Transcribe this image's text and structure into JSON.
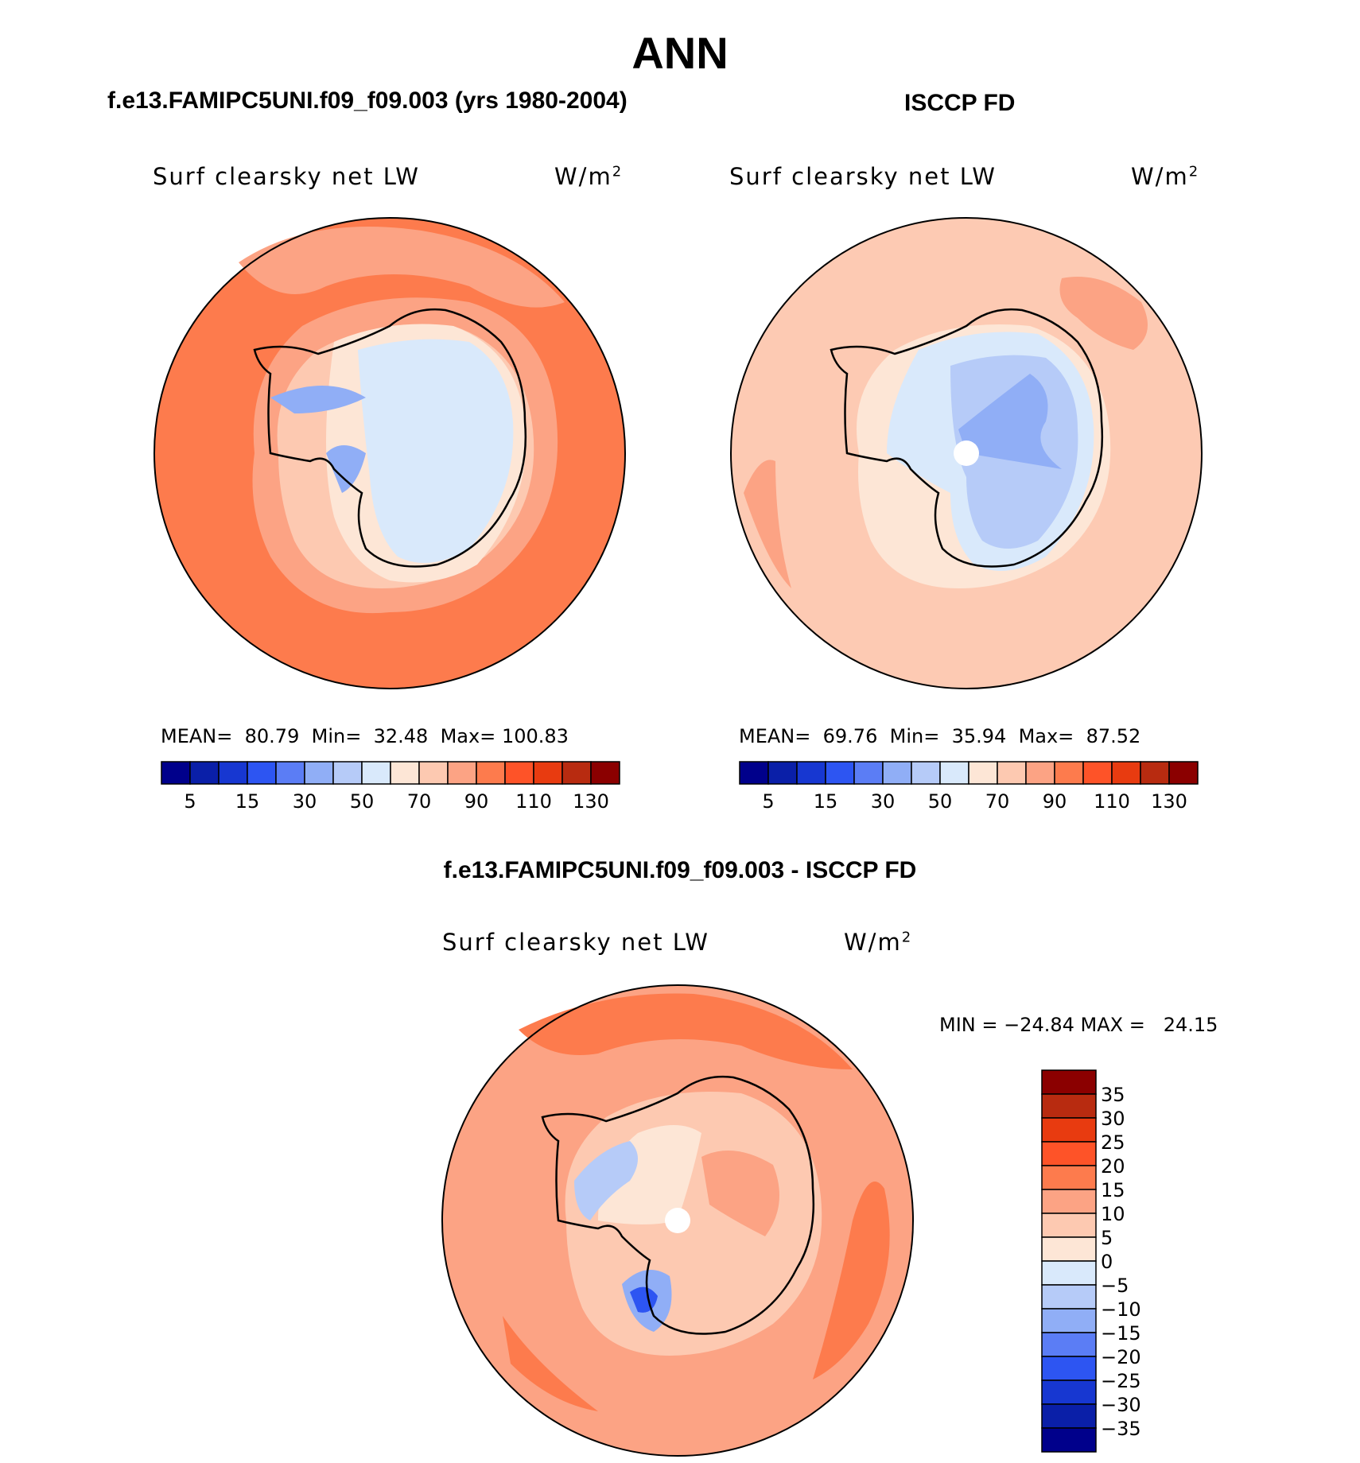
{
  "title": "ANN",
  "panels": [
    {
      "title": "f.e13.FAMIPC5UNI.f09_f09.003 (yrs 1980-2004)",
      "variable": "Surf clearsky net LW",
      "units": "W/m",
      "units_sup": "2",
      "stats": {
        "mean_label": "MEAN=",
        "mean": "80.79",
        "min_label": "Min=",
        "min": "32.48",
        "max_label": "Max=",
        "max": "100.83"
      },
      "base_color": "#fd7b4d"
    },
    {
      "title": "ISCCP FD",
      "variable": "Surf clearsky net LW",
      "units": "W/m",
      "units_sup": "2",
      "stats": {
        "mean_label": "MEAN=",
        "mean": "69.76",
        "min_label": "Min=",
        "min": "35.94",
        "max_label": "Max=",
        "max": "87.52"
      },
      "base_color": "#fdcab3"
    }
  ],
  "diff_panel": {
    "title": "f.e13.FAMIPC5UNI.f09_f09.003 - ISCCP FD",
    "variable": "Surf clearsky net LW",
    "units": "W/m",
    "units_sup": "2",
    "minmax": "MIN = −24.84 MAX =   24.15",
    "base_color": "#fca384"
  },
  "colorbar_abs": {
    "colors": [
      "#00008b",
      "#0a1fa8",
      "#1737d1",
      "#2d55f2",
      "#5b7df5",
      "#90aef6",
      "#b6cbf8",
      "#d9e9fb",
      "#fde6d6",
      "#fdc9b1",
      "#fca384",
      "#fd7b4d",
      "#fe5328",
      "#e83b10",
      "#b82b10",
      "#8b0000"
    ],
    "labels": [
      "5",
      "15",
      "30",
      "50",
      "70",
      "90",
      "110",
      "130"
    ]
  },
  "colorbar_diff": {
    "colors": [
      "#00008b",
      "#0a1fa8",
      "#1737d1",
      "#2d55f2",
      "#5b7df5",
      "#90aef6",
      "#b6cbf8",
      "#d9e9fb",
      "#fde6d6",
      "#fdc9b1",
      "#fca384",
      "#fd7b4d",
      "#fe5328",
      "#e83b10",
      "#b82b10",
      "#8b0000"
    ],
    "labels": [
      "−35",
      "−30",
      "−25",
      "−20",
      "−15",
      "−10",
      "−5",
      "0",
      "5",
      "10",
      "15",
      "20",
      "25",
      "30",
      "35"
    ]
  }
}
